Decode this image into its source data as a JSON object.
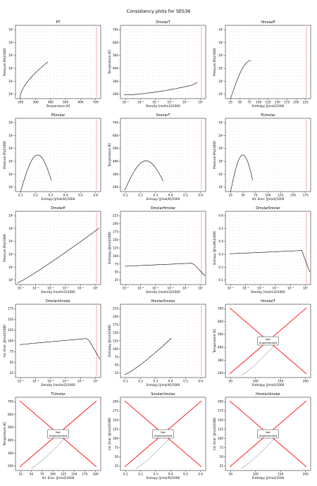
{
  "title": "Consistency plots for SES36",
  "not_implemented_label": "Not Implemented",
  "chart_data": [
    {
      "type": "scatter",
      "title": "PT",
      "xlabel": "Temperature [K]",
      "ylabel": "Pressure [Pa]/1000",
      "xticks": [
        200,
        300,
        400,
        500,
        600,
        700
      ],
      "yticks": [
        "10⁰",
        "10¹",
        "10²",
        "10³",
        "10⁴",
        "10⁵"
      ],
      "xlim": [
        170,
        760
      ],
      "ylim": [
        0,
        6.5
      ],
      "log_y": true,
      "curve": "pt"
    },
    {
      "type": "scatter",
      "title": "DmolarT",
      "xlabel": "Density [mol/m3]/1000",
      "ylabel": "Temperature [K]",
      "xticks": [
        "10⁻⁵",
        "10⁻⁴",
        "10⁻³",
        "10⁻²",
        "10⁻¹",
        "10⁰"
      ],
      "yticks": [
        200,
        300,
        400,
        500,
        600,
        700
      ],
      "xlim": [
        -5.5,
        0.1
      ],
      "ylim": [
        170,
        760
      ],
      "log_x": true,
      "curve": "dt"
    },
    {
      "type": "scatter",
      "title": "HmolarP",
      "xlabel": "Enthalpy [J/mol]/1000",
      "ylabel": "Pressure [Pa]/1000",
      "xticks": [
        25,
        50,
        75,
        100,
        125,
        150,
        175,
        200,
        225
      ],
      "yticks": [
        "10⁰",
        "10¹",
        "10²",
        "10³",
        "10⁴",
        "10⁵"
      ],
      "xlim": [
        15,
        235
      ],
      "ylim": [
        0,
        6.5
      ],
      "log_y": true,
      "curve": "hp"
    },
    {
      "type": "scatter",
      "title": "PSmolar",
      "xlabel": "Entropy [J/mol/K]/1000",
      "ylabel": "Pressure [Pa]/1000",
      "xticks": [
        0.1,
        0.2,
        0.3,
        0.4,
        0.5,
        0.6
      ],
      "yticks": [
        "10⁰",
        "10¹",
        "10²",
        "10³",
        "10⁴",
        "10⁵"
      ],
      "xlim": [
        0.06,
        0.62
      ],
      "ylim": [
        0,
        6.5
      ],
      "log_y": true,
      "curve": "sp"
    },
    {
      "type": "scatter",
      "title": "SmolarT",
      "xlabel": "Entropy [J/mol/K]/1000",
      "ylabel": "Temperature [K]",
      "xticks": [
        0.1,
        0.2,
        0.3,
        0.4,
        0.5,
        0.6
      ],
      "yticks": [
        200,
        300,
        400,
        500,
        600,
        700
      ],
      "xlim": [
        0.06,
        0.62
      ],
      "ylim": [
        170,
        760
      ],
      "curve": "st"
    },
    {
      "type": "scatter",
      "title": "PUmolar",
      "xlabel": "Int. Ener. [J/mol]/1000",
      "ylabel": "Pressure [Pa]/1000",
      "xticks": [
        25,
        50,
        75,
        100,
        125,
        150,
        175
      ],
      "yticks": [
        "10⁰",
        "10¹",
        "10²",
        "10³",
        "10⁴",
        "10⁵"
      ],
      "xlim": [
        15,
        200
      ],
      "ylim": [
        0,
        6.5
      ],
      "log_y": true,
      "curve": "up"
    },
    {
      "type": "scatter",
      "title": "DmolarP",
      "xlabel": "Density [mol/m3]/1000",
      "ylabel": "Pressure [Pa]/1000",
      "xticks": [
        "10⁻⁵",
        "10⁻⁴",
        "10⁻³",
        "10⁻²",
        "10⁻¹",
        "10⁰"
      ],
      "yticks": [
        "10⁰",
        "10¹",
        "10²",
        "10³",
        "10⁴",
        "10⁵"
      ],
      "xlim": [
        -5.5,
        0.1
      ],
      "ylim": [
        0,
        6.5
      ],
      "log_x": true,
      "log_y": true,
      "curve": "dp"
    },
    {
      "type": "scatter",
      "title": "DmolarHmolar",
      "xlabel": "Density [mol/m3]/1000",
      "ylabel": "Enthalpy [J/mol]/1000",
      "xticks": [
        "10⁻⁵",
        "10⁻⁴",
        "10⁻³",
        "10⁻²",
        "10⁻¹",
        "10⁰"
      ],
      "yticks": [
        25,
        50,
        75,
        100,
        125,
        150,
        175,
        200,
        225
      ],
      "xlim": [
        -5.5,
        0.1
      ],
      "ylim": [
        15,
        235
      ],
      "log_x": true,
      "curve": "dh"
    },
    {
      "type": "scatter",
      "title": "DmolarSmolar",
      "xlabel": "Density [mol/m3]/1000",
      "ylabel": "Entropy [J/mol/K]/1000",
      "xticks": [
        "10⁻⁵",
        "10⁻⁴",
        "10⁻³",
        "10⁻²",
        "10⁻¹",
        "10⁰"
      ],
      "yticks": [
        0.1,
        0.2,
        0.3,
        0.4,
        0.5,
        0.6
      ],
      "xlim": [
        -5.5,
        0.1
      ],
      "ylim": [
        0.06,
        0.62
      ],
      "log_x": true,
      "curve": "ds"
    },
    {
      "type": "scatter",
      "title": "DmolarUmolar",
      "xlabel": "Density [mol/m3]/1000",
      "ylabel": "Int. Ener. [J/mol]/1000",
      "xticks": [
        "10⁻⁵",
        "10⁻⁴",
        "10⁻³",
        "10⁻²",
        "10⁻¹",
        "10⁰"
      ],
      "yticks": [
        25,
        50,
        75,
        100,
        125,
        150,
        175
      ],
      "xlim": [
        -5.5,
        0.1
      ],
      "ylim": [
        15,
        200
      ],
      "log_x": true,
      "curve": "du"
    },
    {
      "type": "scatter",
      "title": "HmolarSmolar",
      "xlabel": "Entropy [J/mol/K]/1000",
      "ylabel": "Enthalpy [J/mol]/1000",
      "xticks": [
        0.1,
        0.2,
        0.3,
        0.4,
        0.5,
        0.6
      ],
      "yticks": [
        25,
        50,
        75,
        100,
        125,
        150,
        175,
        200,
        225
      ],
      "xlim": [
        0.06,
        0.62
      ],
      "ylim": [
        15,
        235
      ],
      "curve": "sh"
    },
    {
      "type": "scatter",
      "title": "HmolarT",
      "xlabel": "Enthalpy [J/mol]/1000",
      "ylabel": "Temperature [K]",
      "xticks": [
        50,
        100,
        150,
        200
      ],
      "yticks": [
        200,
        300,
        400,
        500,
        600,
        700
      ],
      "xlim": [
        20,
        235
      ],
      "ylim": [
        170,
        760
      ],
      "curve": "ht",
      "not_implemented": true
    },
    {
      "type": "scatter",
      "title": "TUmolar",
      "xlabel": "Int. Ener. [J/mol]/1000",
      "ylabel": "Temperature [K]",
      "xticks": [
        25,
        50,
        75,
        100,
        125,
        150,
        175,
        200
      ],
      "yticks": [
        200,
        300,
        400,
        500,
        600,
        700
      ],
      "xlim": [
        15,
        205
      ],
      "ylim": [
        170,
        760
      ],
      "curve": "ut",
      "not_implemented": true
    },
    {
      "type": "scatter",
      "title": "SmolarUmolar",
      "xlabel": "Entropy [J/mol/K]/1000",
      "ylabel": "Int. Ener. [J/mol]/1000",
      "xticks": [
        0.1,
        0.2,
        0.3,
        0.4,
        0.5,
        0.6
      ],
      "yticks": [
        25,
        50,
        75,
        100,
        125,
        150,
        175,
        200
      ],
      "xlim": [
        0.06,
        0.62
      ],
      "ylim": [
        10,
        210
      ],
      "curve": "su",
      "not_implemented": true
    },
    {
      "type": "scatter",
      "title": "HmolarUmolar",
      "xlabel": "Enthalpy [J/mol]/1000",
      "ylabel": "Int. Ener. [J/mol]/1000",
      "xticks": [
        50,
        100,
        150,
        200
      ],
      "yticks": [
        25,
        50,
        75,
        100,
        125,
        150,
        175,
        200
      ],
      "xlim": [
        20,
        235
      ],
      "ylim": [
        10,
        210
      ],
      "curve": "hu",
      "not_implemented": true
    }
  ]
}
